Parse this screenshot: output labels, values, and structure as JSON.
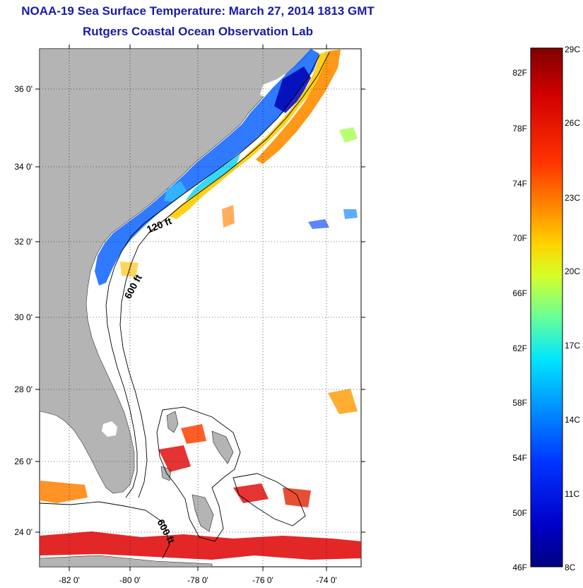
{
  "title": "NOAA-19 Sea Surface Temperature:  March 27, 2014 1813 GMT",
  "subtitle": "Rutgers Coastal Ocean Observation Lab",
  "map": {
    "lat_labels": [
      "36 0'",
      "34 0'",
      "32 0'",
      "30 0'",
      "28 0'",
      "26 0'",
      "24 0'"
    ],
    "lon_labels": [
      "-82 0'",
      "-80 0'",
      "-78 0'",
      "-76 0'",
      "-74 0'"
    ],
    "contour_labels": [
      "120 ft",
      "600 ft",
      "600 ft"
    ],
    "land_color": "#b4b4b4"
  },
  "colorbar": {
    "fahrenheit_labels": [
      "82F",
      "78F",
      "74F",
      "70F",
      "66F",
      "62F",
      "58F",
      "54F",
      "50F",
      "46F"
    ],
    "celsius_labels": [
      "29C",
      "26C",
      "23C",
      "20C",
      "17C",
      "14C",
      "11C",
      "8C"
    ],
    "colormap": [
      "#7f0000",
      "#d10000",
      "#ff3300",
      "#ff8c00",
      "#ffd500",
      "#d4ff2a",
      "#66ff99",
      "#00e5ff",
      "#008cff",
      "#0033ff",
      "#0000c8",
      "#00007f"
    ]
  }
}
